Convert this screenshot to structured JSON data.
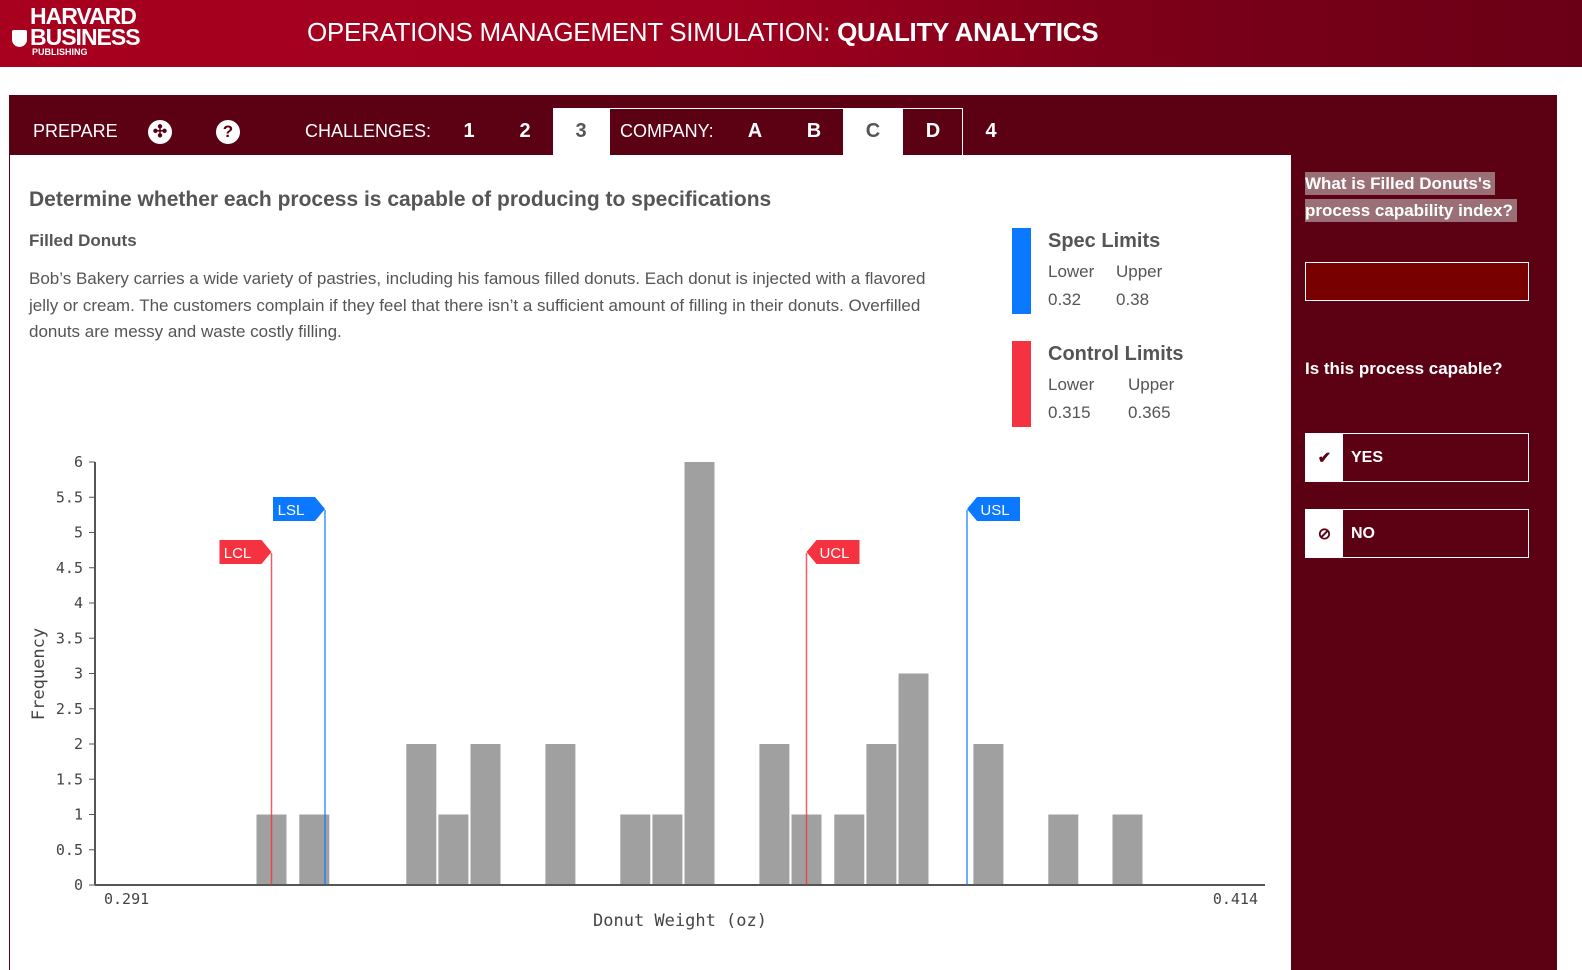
{
  "header": {
    "logo": [
      "HARVARD",
      "BUSINESS",
      "PUBLISHING"
    ],
    "title_prefix": "OPERATIONS MANAGEMENT SIMULATION: ",
    "title_bold": "QUALITY ANALYTICS",
    "brand_color": "#a8001f"
  },
  "nav": {
    "prepare": "PREPARE",
    "lifebuoy_icon": "lifebuoy-icon",
    "help_icon": "help-icon",
    "challenges_label": "CHALLENGES:",
    "challenges": [
      "1",
      "2",
      "3",
      "4"
    ],
    "active_challenge": "3",
    "company_label": "COMPANY:",
    "companies": [
      "A",
      "B",
      "C",
      "D"
    ],
    "active_company": "C"
  },
  "main": {
    "heading": "Determine whether each process is capable of producing to specifications",
    "subheading": "Filled Donuts",
    "description": "Bob’s Bakery carries a wide variety of pastries, including his famous filled donuts. Each donut is injected with a flavored jelly or cream. The customers complain if they feel that there isn’t a sufficient amount of filling in their donuts. Overfilled donuts are messy and waste costly filling.",
    "legend": {
      "spec": {
        "title": "Spec Limits",
        "lower_label": "Lower",
        "upper_label": "Upper",
        "lower": "0.32",
        "upper": "0.38",
        "color": "#0a78ff"
      },
      "control": {
        "title": "Control Limits",
        "lower_label": "Lower",
        "upper_label": "Upper",
        "lower": "0.315",
        "upper": "0.365",
        "color": "#f5323f"
      }
    }
  },
  "chart_data": {
    "type": "bar",
    "xlabel": "Donut Weight (oz)",
    "ylabel": "Frequency",
    "x_tick_labels": [
      "0.291",
      "0.414"
    ],
    "ylim": [
      0,
      6
    ],
    "y_ticks": [
      "0",
      "0.5",
      "1",
      "1.5",
      "2",
      "2.5",
      "3",
      "3.5",
      "4",
      "4.5",
      "5",
      "5.5",
      "6"
    ],
    "bins": [
      {
        "x": 0.315,
        "count": 1
      },
      {
        "x": 0.319,
        "count": 1
      },
      {
        "x": 0.329,
        "count": 2
      },
      {
        "x": 0.332,
        "count": 1
      },
      {
        "x": 0.335,
        "count": 2
      },
      {
        "x": 0.342,
        "count": 2
      },
      {
        "x": 0.349,
        "count": 1
      },
      {
        "x": 0.352,
        "count": 1
      },
      {
        "x": 0.355,
        "count": 6
      },
      {
        "x": 0.362,
        "count": 2
      },
      {
        "x": 0.365,
        "count": 1
      },
      {
        "x": 0.369,
        "count": 1
      },
      {
        "x": 0.372,
        "count": 2
      },
      {
        "x": 0.375,
        "count": 3
      },
      {
        "x": 0.382,
        "count": 2
      },
      {
        "x": 0.389,
        "count": 1
      },
      {
        "x": 0.395,
        "count": 1
      }
    ],
    "markers": [
      {
        "label": "LCL",
        "value": 0.315,
        "color": "#f5323f"
      },
      {
        "label": "LSL",
        "value": 0.32,
        "color": "#0a78ff"
      },
      {
        "label": "UCL",
        "value": 0.365,
        "color": "#f5323f"
      },
      {
        "label": "USL",
        "value": 0.38,
        "color": "#0a78ff"
      }
    ],
    "bar_color": "#a0a0a0",
    "grid": false
  },
  "side": {
    "question1": "What is Filled Donuts's process capability index?",
    "answer_value": "",
    "question2": "Is this process capable?",
    "yes": "YES",
    "no": "NO"
  }
}
